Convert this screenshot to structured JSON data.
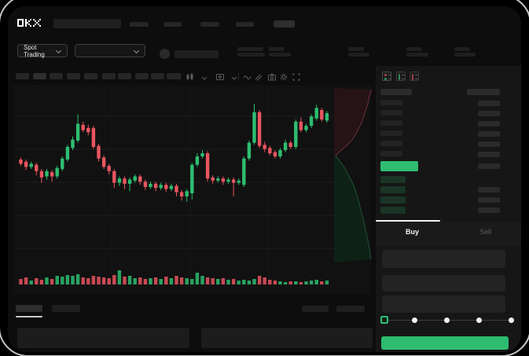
{
  "header": {
    "logo": "OKX",
    "nav_placeholder_count": 5
  },
  "market_bar": {
    "market_selector_label": "Spot Trading",
    "pair_dropdown_value": "",
    "stat_group_count": 5
  },
  "chart_toolbar": {
    "timeframe_placeholder_count": 10,
    "icons": [
      "candle-style-icon",
      "chevron-down-icon",
      "indicator-icon",
      "chevron-down-icon",
      "line-tool-icon",
      "draw-tool-icon",
      "camera-icon",
      "settings-gear-icon",
      "fullscreen-icon"
    ]
  },
  "chart_data": {
    "type": "candlestick",
    "title": "",
    "xlabel": "",
    "ylabel": "",
    "axis_labels_visible": false,
    "price_scale": "relative 0-100 (skeleton UI, no numeric labels rendered)",
    "grid": true,
    "candles": [
      [
        44,
        46,
        38,
        40
      ],
      [
        42,
        44,
        34,
        37
      ],
      [
        37,
        42,
        35,
        40
      ],
      [
        39,
        41,
        29,
        33
      ],
      [
        33,
        35,
        22,
        27
      ],
      [
        28,
        35,
        25,
        33
      ],
      [
        32,
        34,
        23,
        28
      ],
      [
        28,
        38,
        26,
        36
      ],
      [
        35,
        47,
        33,
        45
      ],
      [
        44,
        58,
        42,
        56
      ],
      [
        55,
        66,
        53,
        63
      ],
      [
        62,
        87,
        60,
        78
      ],
      [
        77,
        80,
        70,
        72
      ],
      [
        74,
        77,
        67,
        70
      ],
      [
        74,
        76,
        54,
        56
      ],
      [
        57,
        59,
        42,
        45
      ],
      [
        46,
        48,
        35,
        37
      ],
      [
        38,
        40,
        30,
        33
      ],
      [
        33,
        35,
        17,
        22
      ],
      [
        22,
        28,
        19,
        26
      ],
      [
        26,
        28,
        16,
        21
      ],
      [
        21,
        27,
        14,
        25
      ],
      [
        24,
        30,
        22,
        28
      ],
      [
        28,
        30,
        20,
        23
      ],
      [
        23,
        25,
        15,
        18
      ],
      [
        18,
        23,
        16,
        21
      ],
      [
        21,
        23,
        14,
        17
      ],
      [
        17,
        22,
        15,
        20
      ],
      [
        20,
        22,
        13,
        16
      ],
      [
        16,
        21,
        14,
        19
      ],
      [
        19,
        21,
        9,
        13
      ],
      [
        13,
        15,
        5,
        9
      ],
      [
        9,
        16,
        4,
        14
      ],
      [
        12,
        41,
        6,
        39
      ],
      [
        39,
        50,
        37,
        47
      ],
      [
        47,
        53,
        45,
        50
      ],
      [
        50,
        52,
        23,
        26
      ],
      [
        27,
        29,
        21,
        24
      ],
      [
        24,
        28,
        22,
        26
      ],
      [
        26,
        28,
        20,
        23
      ],
      [
        23,
        27,
        21,
        25
      ],
      [
        25,
        27,
        9,
        22
      ],
      [
        22,
        26,
        20,
        24
      ],
      [
        20,
        47,
        18,
        45
      ],
      [
        45,
        62,
        43,
        60
      ],
      [
        60,
        97,
        58,
        89
      ],
      [
        89,
        91,
        55,
        57
      ],
      [
        58,
        61,
        51,
        54
      ],
      [
        55,
        57,
        48,
        50
      ],
      [
        51,
        53,
        45,
        47
      ],
      [
        47,
        55,
        45,
        53
      ],
      [
        53,
        63,
        51,
        60
      ],
      [
        60,
        62,
        54,
        56
      ],
      [
        56,
        82,
        54,
        80
      ],
      [
        80,
        84,
        70,
        72
      ],
      [
        72,
        78,
        70,
        76
      ],
      [
        76,
        87,
        74,
        85
      ],
      [
        83,
        96,
        81,
        93
      ],
      [
        91,
        93,
        80,
        82
      ],
      [
        81,
        90,
        79,
        88
      ]
    ],
    "volumes": [
      7,
      9,
      5,
      8,
      6,
      9,
      7,
      11,
      10,
      12,
      11,
      13,
      9,
      8,
      11,
      10,
      9,
      8,
      12,
      18,
      10,
      11,
      8,
      9,
      7,
      8,
      9,
      7,
      10,
      8,
      11,
      9,
      8,
      7,
      15,
      11,
      9,
      8,
      7,
      8,
      6,
      7,
      5,
      6,
      5,
      7,
      11,
      9,
      6,
      5,
      4,
      3,
      4,
      4,
      3,
      4,
      5,
      6,
      4,
      5
    ],
    "depth": {
      "asks": [
        [
          48,
          2
        ],
        [
          45,
          10
        ],
        [
          43,
          20
        ],
        [
          39,
          32
        ],
        [
          35,
          44
        ],
        [
          29,
          56
        ],
        [
          23,
          66
        ],
        [
          15,
          74
        ],
        [
          8,
          80
        ],
        [
          2,
          86
        ]
      ],
      "bids": [
        [
          2,
          86
        ],
        [
          7,
          93
        ],
        [
          13,
          101
        ],
        [
          19,
          112
        ],
        [
          25,
          124
        ],
        [
          30,
          139
        ],
        [
          34,
          155
        ],
        [
          38,
          171
        ],
        [
          42,
          189
        ],
        [
          45,
          204
        ],
        [
          47,
          218
        ]
      ]
    }
  },
  "order_book": {
    "view_toggles": [
      "combined-book",
      "bids-only",
      "asks-only"
    ],
    "ask_row_count": 6,
    "bid_rows": [
      {
        "right_bar": false
      },
      {
        "right_bar": true
      },
      {
        "right_bar": true
      },
      {
        "right_bar": true
      }
    ],
    "last_price_row": {
      "highlight": true
    }
  },
  "trade_panel": {
    "tabs": [
      {
        "label": "Buy",
        "active": true
      },
      {
        "label": "Sell",
        "active": false
      }
    ],
    "input_count": 3,
    "slider": {
      "stops": 5,
      "active_stop": 0
    },
    "submit_button": {
      "color": "#2ebd70"
    }
  },
  "bottom_panel": {
    "tab_placeholder_count": 2,
    "right_placeholder_count": 2,
    "table_placeholder_count": 2
  },
  "colors": {
    "green": "#2ebd70",
    "red": "#e95560",
    "bid_bar": "#1a3526",
    "skeleton": "#262626",
    "app_bg": "#0d0d0d",
    "panel_bg": "#161616",
    "frame_border": "#c6c6c6"
  }
}
